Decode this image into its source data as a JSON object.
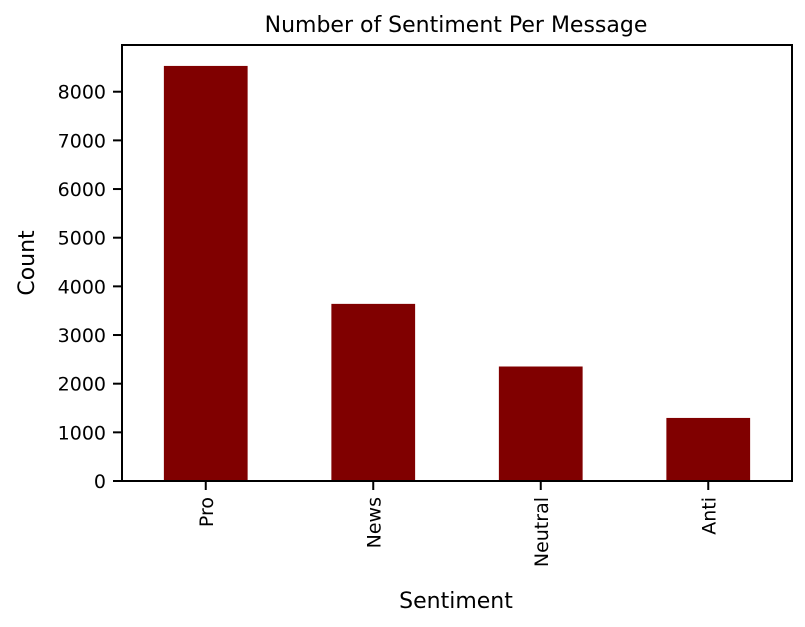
{
  "chart_data": {
    "type": "bar",
    "title": "Number of Sentiment Per Message",
    "xlabel": "Sentiment",
    "ylabel": "Count",
    "categories": [
      "Pro",
      "News",
      "Neutral",
      "Anti"
    ],
    "values": [
      8530,
      3640,
      2353,
      1296
    ],
    "ylim": [
      0,
      8960
    ],
    "yticks": [
      0,
      1000,
      2000,
      3000,
      4000,
      5000,
      6000,
      7000,
      8000
    ],
    "grid": false,
    "bar_color": "#800000",
    "axis_color": "#000000"
  }
}
